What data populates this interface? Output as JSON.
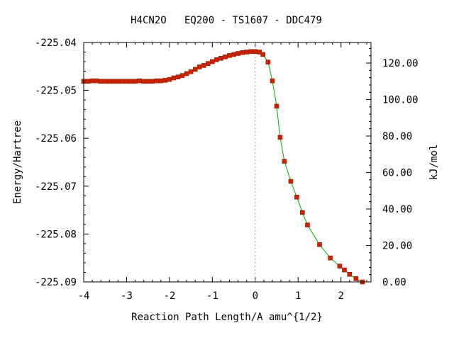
{
  "chart_data": {
    "type": "line",
    "title": "H4CN2O   EQ200 - TS1607 - DDC479",
    "xlabel": "Reaction Path Length/A amu^{1/2}",
    "ylabel": "Energy/Hartree",
    "y2label": "kJ/mol",
    "xlim": [
      -4.0,
      2.7
    ],
    "ylim": [
      -225.09,
      -225.04
    ],
    "y2lim": [
      0.0,
      131.28
    ],
    "x_ticks": [
      "-4",
      "-3",
      "-2",
      "-1",
      "0",
      "1",
      "2"
    ],
    "y_ticks": [
      "-225.04",
      "-225.05",
      "-225.06",
      "-225.07",
      "-225.08",
      "-225.09"
    ],
    "y2_ticks": [
      "120.00",
      "100.00",
      "80.00",
      "60.00",
      "40.00",
      "20.00",
      "0.00"
    ],
    "ts_marker_x": 0.0,
    "grid": false,
    "colors": {
      "line": "#00aa00",
      "marker": "#cc2200",
      "marker_edge": "#882200",
      "ts_line": "#999999"
    },
    "series": [
      {
        "x": [
          -4.0,
          -3.9,
          -3.8,
          -3.7,
          -3.6,
          -3.5,
          -3.4,
          -3.3,
          -3.2,
          -3.1,
          -3.0,
          -2.9,
          -2.8,
          -2.7,
          -2.6,
          -2.5,
          -2.4,
          -2.3,
          -2.2,
          -2.1,
          -2.0,
          -1.9,
          -1.8,
          -1.7,
          -1.6,
          -1.5,
          -1.4,
          -1.3,
          -1.2,
          -1.1,
          -1.0,
          -0.9,
          -0.8,
          -0.7,
          -0.6,
          -0.5,
          -0.4,
          -0.3,
          -0.2,
          -0.1,
          0.0,
          0.1,
          0.18,
          0.3,
          0.4,
          0.5,
          0.58,
          0.68,
          0.83,
          0.97,
          1.1,
          1.22,
          1.5,
          1.75,
          1.97,
          2.08,
          2.2,
          2.35,
          2.5
        ],
        "values": [
          -225.0481,
          -225.0481,
          -225.048,
          -225.048,
          -225.0481,
          -225.0481,
          -225.0481,
          -225.0481,
          -225.0481,
          -225.0481,
          -225.0481,
          -225.0481,
          -225.0481,
          -225.048,
          -225.0481,
          -225.0481,
          -225.0481,
          -225.048,
          -225.048,
          -225.0479,
          -225.0477,
          -225.0474,
          -225.0472,
          -225.0469,
          -225.0465,
          -225.0461,
          -225.0456,
          -225.0451,
          -225.0448,
          -225.0444,
          -225.044,
          -225.0436,
          -225.0433,
          -225.043,
          -225.0427,
          -225.0425,
          -225.0423,
          -225.0421,
          -225.042,
          -225.0419,
          -225.0419,
          -225.042,
          -225.0425,
          -225.0441,
          -225.048,
          -225.0533,
          -225.0598,
          -225.0648,
          -225.069,
          -225.0723,
          -225.0755,
          -225.0781,
          -225.0822,
          -225.085,
          -225.0867,
          -225.0875,
          -225.0884,
          -225.0893,
          -225.09
        ]
      }
    ]
  }
}
